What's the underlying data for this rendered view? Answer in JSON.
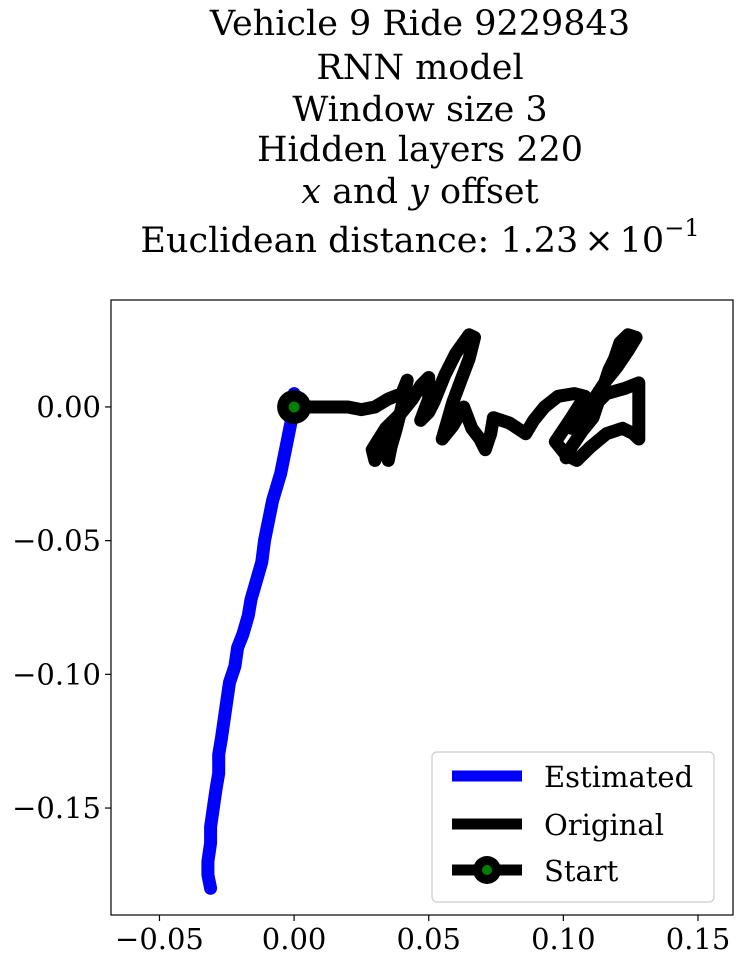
{
  "chart_data": {
    "type": "line",
    "title_lines": [
      "Vehicle 9 Ride 9229843",
      "RNN model",
      "Window size 3",
      "Hidden layers 220"
    ],
    "title_offset_line": {
      "x": "x",
      "and": " and ",
      "y": "y",
      "rest": " offset"
    },
    "title_distance": {
      "prefix": "Euclidean distance: ",
      "mantissa": "1.23",
      "times": "×",
      "base": "10",
      "exponent": "−1"
    },
    "xlabel": "",
    "ylabel": "",
    "xlim": [
      -0.068,
      0.163
    ],
    "ylim": [
      -0.19,
      0.04
    ],
    "x_ticks": [
      -0.05,
      0.0,
      0.05,
      0.1,
      0.15
    ],
    "x_tick_labels": [
      "−0.05",
      "0.00",
      "0.05",
      "0.10",
      "0.15"
    ],
    "y_ticks": [
      0.0,
      -0.05,
      -0.1,
      -0.15
    ],
    "y_tick_labels": [
      "0.00",
      "−0.05",
      "−0.10",
      "−0.15"
    ],
    "grid": false,
    "legend_position": "lower-right",
    "series": [
      {
        "name": "Estimated",
        "color": "#0000ff",
        "points": [
          [
            0.0,
            0.005
          ],
          [
            -0.001,
            -0.005
          ],
          [
            -0.003,
            -0.015
          ],
          [
            -0.005,
            -0.025
          ],
          [
            -0.008,
            -0.035
          ],
          [
            -0.01,
            -0.045
          ],
          [
            -0.011,
            -0.05
          ],
          [
            -0.012,
            -0.058
          ],
          [
            -0.014,
            -0.065
          ],
          [
            -0.016,
            -0.072
          ],
          [
            -0.017,
            -0.078
          ],
          [
            -0.019,
            -0.085
          ],
          [
            -0.021,
            -0.09
          ],
          [
            -0.022,
            -0.097
          ],
          [
            -0.024,
            -0.103
          ],
          [
            -0.025,
            -0.11
          ],
          [
            -0.026,
            -0.117
          ],
          [
            -0.027,
            -0.124
          ],
          [
            -0.028,
            -0.13
          ],
          [
            -0.028,
            -0.137
          ],
          [
            -0.029,
            -0.143
          ],
          [
            -0.03,
            -0.15
          ],
          [
            -0.031,
            -0.157
          ],
          [
            -0.031,
            -0.163
          ],
          [
            -0.032,
            -0.17
          ],
          [
            -0.032,
            -0.175
          ],
          [
            -0.031,
            -0.18
          ]
        ]
      },
      {
        "name": "Original",
        "color": "#000000",
        "points": [
          [
            0.0,
            0.0
          ],
          [
            0.01,
            0.0
          ],
          [
            0.02,
            0.0
          ],
          [
            0.025,
            -0.001
          ],
          [
            0.03,
            0.0
          ],
          [
            0.035,
            0.003
          ],
          [
            0.04,
            0.005
          ],
          [
            0.042,
            0.01
          ],
          [
            0.04,
            0.0
          ],
          [
            0.038,
            -0.008
          ],
          [
            0.036,
            -0.015
          ],
          [
            0.035,
            -0.02
          ],
          [
            0.033,
            -0.012
          ],
          [
            0.03,
            -0.02
          ],
          [
            0.029,
            -0.016
          ],
          [
            0.034,
            -0.008
          ],
          [
            0.04,
            -0.002
          ],
          [
            0.044,
            0.003
          ],
          [
            0.047,
            0.008
          ],
          [
            0.05,
            0.011
          ],
          [
            0.05,
            0.003
          ],
          [
            0.047,
            -0.005
          ],
          [
            0.05,
            -0.002
          ],
          [
            0.052,
            0.002
          ],
          [
            0.056,
            0.012
          ],
          [
            0.06,
            0.02
          ],
          [
            0.065,
            0.027
          ],
          [
            0.067,
            0.026
          ],
          [
            0.065,
            0.018
          ],
          [
            0.062,
            0.01
          ],
          [
            0.059,
            0.002
          ],
          [
            0.057,
            -0.005
          ],
          [
            0.055,
            -0.012
          ],
          [
            0.059,
            -0.007
          ],
          [
            0.063,
            0.0
          ],
          [
            0.066,
            -0.008
          ],
          [
            0.069,
            -0.012
          ],
          [
            0.071,
            -0.016
          ],
          [
            0.073,
            -0.01
          ],
          [
            0.074,
            -0.004
          ],
          [
            0.08,
            -0.006
          ],
          [
            0.086,
            -0.01
          ],
          [
            0.089,
            -0.005
          ],
          [
            0.093,
            0.0
          ],
          [
            0.098,
            0.004
          ],
          [
            0.104,
            0.005
          ],
          [
            0.108,
            0.004
          ],
          [
            0.103,
            -0.004
          ],
          [
            0.099,
            -0.01
          ],
          [
            0.097,
            -0.013
          ],
          [
            0.101,
            -0.018
          ],
          [
            0.105,
            -0.02
          ],
          [
            0.11,
            -0.015
          ],
          [
            0.116,
            -0.01
          ],
          [
            0.122,
            -0.008
          ],
          [
            0.126,
            -0.01
          ],
          [
            0.128,
            -0.012
          ],
          [
            0.128,
            0.0
          ],
          [
            0.128,
            0.009
          ],
          [
            0.123,
            0.007
          ],
          [
            0.116,
            0.005
          ],
          [
            0.111,
            0.0
          ],
          [
            0.106,
            -0.004
          ],
          [
            0.103,
            -0.008
          ],
          [
            0.108,
            -0.003
          ],
          [
            0.112,
            0.004
          ],
          [
            0.116,
            0.01
          ],
          [
            0.12,
            0.015
          ],
          [
            0.124,
            0.021
          ],
          [
            0.127,
            0.026
          ],
          [
            0.124,
            0.027
          ],
          [
            0.121,
            0.024
          ],
          [
            0.119,
            0.018
          ],
          [
            0.117,
            0.014
          ],
          [
            0.115,
            0.008
          ],
          [
            0.113,
            0.002
          ],
          [
            0.111,
            -0.004
          ],
          [
            0.107,
            -0.009
          ],
          [
            0.103,
            -0.015
          ],
          [
            0.101,
            -0.019
          ]
        ]
      },
      {
        "name": "Start",
        "color": "#008000",
        "points": [
          [
            0.0,
            0.0
          ]
        ]
      }
    ]
  }
}
